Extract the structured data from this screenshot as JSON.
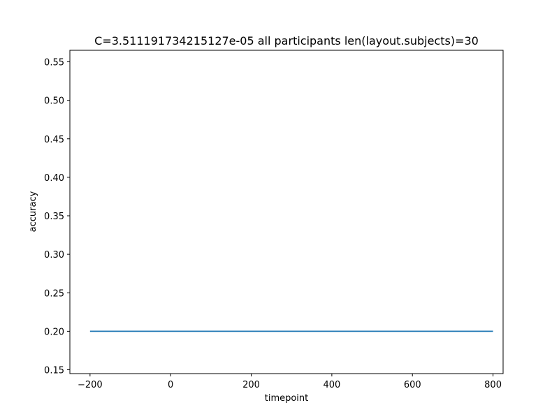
{
  "chart_data": {
    "type": "line",
    "title": "C=3.511191734215127e-05 all participants len(layout.subjects)=30",
    "xlabel": "timepoint",
    "ylabel": "accuracy",
    "xlim": [
      -250,
      825
    ],
    "ylim": [
      0.145,
      0.565
    ],
    "xticks": [
      -200,
      0,
      200,
      400,
      600,
      800
    ],
    "yticks": [
      0.15,
      0.2,
      0.25,
      0.3,
      0.35,
      0.4,
      0.45,
      0.5,
      0.55
    ],
    "xtick_labels": [
      "−200",
      "0",
      "200",
      "400",
      "600",
      "800"
    ],
    "ytick_labels": [
      "0.15",
      "0.20",
      "0.25",
      "0.30",
      "0.35",
      "0.40",
      "0.45",
      "0.50",
      "0.55"
    ],
    "grid": false,
    "series": [
      {
        "color": "#1f77b4",
        "x": [
          -200,
          800
        ],
        "y": [
          0.2,
          0.2
        ]
      }
    ]
  }
}
